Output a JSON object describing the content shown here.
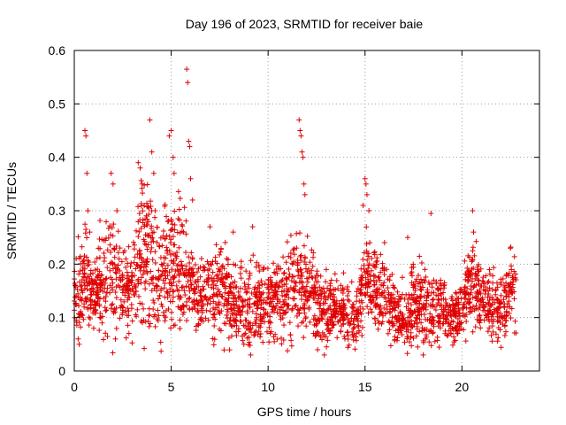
{
  "chart_data": {
    "type": "scatter",
    "title": "Day 196 of 2023, SRMTID for receiver baie",
    "xlabel": "GPS time / hours",
    "ylabel": "SRMTID / TECUs",
    "xlim": [
      0,
      24
    ],
    "ylim": [
      0,
      0.6
    ],
    "xticks": [
      0,
      5,
      10,
      15,
      20
    ],
    "xtick_labels": [
      "0",
      "5",
      "10",
      "15",
      "20"
    ],
    "yticks": [
      0,
      0.1,
      0.2,
      0.3,
      0.4,
      0.5,
      0.6
    ],
    "ytick_labels": [
      "0",
      "0.1",
      "0.2",
      "0.3",
      "0.4",
      "0.5",
      "0.6"
    ],
    "grid": true,
    "marker": "+",
    "color": "#e00000",
    "series": [
      {
        "name": "SRMTID",
        "trend": [
          [
            0.0,
            0.15,
            0.04
          ],
          [
            0.5,
            0.17,
            0.05
          ],
          [
            1.0,
            0.14,
            0.04
          ],
          [
            1.5,
            0.17,
            0.05
          ],
          [
            2.0,
            0.19,
            0.06
          ],
          [
            2.5,
            0.15,
            0.04
          ],
          [
            3.0,
            0.16,
            0.05
          ],
          [
            3.5,
            0.22,
            0.07
          ],
          [
            4.0,
            0.2,
            0.07
          ],
          [
            4.5,
            0.18,
            0.06
          ],
          [
            5.0,
            0.2,
            0.07
          ],
          [
            5.5,
            0.19,
            0.06
          ],
          [
            6.0,
            0.17,
            0.05
          ],
          [
            6.5,
            0.14,
            0.04
          ],
          [
            7.0,
            0.14,
            0.04
          ],
          [
            7.5,
            0.16,
            0.05
          ],
          [
            8.0,
            0.13,
            0.04
          ],
          [
            8.5,
            0.12,
            0.04
          ],
          [
            9.0,
            0.11,
            0.04
          ],
          [
            9.5,
            0.12,
            0.04
          ],
          [
            10.0,
            0.13,
            0.04
          ],
          [
            10.5,
            0.14,
            0.04
          ],
          [
            11.0,
            0.14,
            0.05
          ],
          [
            11.5,
            0.17,
            0.05
          ],
          [
            12.0,
            0.16,
            0.05
          ],
          [
            12.5,
            0.13,
            0.04
          ],
          [
            13.0,
            0.11,
            0.03
          ],
          [
            13.5,
            0.12,
            0.03
          ],
          [
            14.0,
            0.1,
            0.03
          ],
          [
            14.5,
            0.09,
            0.03
          ],
          [
            15.0,
            0.18,
            0.05
          ],
          [
            15.5,
            0.16,
            0.05
          ],
          [
            16.0,
            0.14,
            0.04
          ],
          [
            16.5,
            0.11,
            0.03
          ],
          [
            17.0,
            0.09,
            0.03
          ],
          [
            17.5,
            0.12,
            0.04
          ],
          [
            18.0,
            0.13,
            0.04
          ],
          [
            18.5,
            0.11,
            0.04
          ],
          [
            19.0,
            0.12,
            0.04
          ],
          [
            19.5,
            0.1,
            0.03
          ],
          [
            20.0,
            0.11,
            0.03
          ],
          [
            20.5,
            0.18,
            0.05
          ],
          [
            21.0,
            0.13,
            0.04
          ],
          [
            21.5,
            0.12,
            0.04
          ],
          [
            22.0,
            0.11,
            0.04
          ],
          [
            22.5,
            0.15,
            0.04
          ],
          [
            22.8,
            0.16,
            0.04
          ]
        ],
        "outliers": [
          [
            0.2,
            0.06
          ],
          [
            0.25,
            0.05
          ],
          [
            0.55,
            0.45
          ],
          [
            0.6,
            0.44
          ],
          [
            0.65,
            0.37
          ],
          [
            0.7,
            0.3
          ],
          [
            0.8,
            0.26
          ],
          [
            1.9,
            0.37
          ],
          [
            2.0,
            0.35
          ],
          [
            2.2,
            0.3
          ],
          [
            3.3,
            0.39
          ],
          [
            3.4,
            0.38
          ],
          [
            3.5,
            0.35
          ],
          [
            3.9,
            0.47
          ],
          [
            4.0,
            0.41
          ],
          [
            4.1,
            0.37
          ],
          [
            4.9,
            0.44
          ],
          [
            5.0,
            0.45
          ],
          [
            5.1,
            0.4
          ],
          [
            5.15,
            0.37
          ],
          [
            5.8,
            0.565
          ],
          [
            5.85,
            0.54
          ],
          [
            5.9,
            0.43
          ],
          [
            5.95,
            0.42
          ],
          [
            6.0,
            0.36
          ],
          [
            6.1,
            0.32
          ],
          [
            11.6,
            0.47
          ],
          [
            11.65,
            0.45
          ],
          [
            11.7,
            0.44
          ],
          [
            11.75,
            0.41
          ],
          [
            11.8,
            0.4
          ],
          [
            11.85,
            0.35
          ],
          [
            11.9,
            0.33
          ],
          [
            15.0,
            0.36
          ],
          [
            15.05,
            0.35
          ],
          [
            15.1,
            0.33
          ],
          [
            14.9,
            0.31
          ],
          [
            15.2,
            0.3
          ],
          [
            18.4,
            0.295
          ],
          [
            20.55,
            0.3
          ],
          [
            20.6,
            0.26
          ],
          [
            22.5,
            0.23
          ],
          [
            9.2,
            0.27
          ],
          [
            7.0,
            0.27
          ],
          [
            8.2,
            0.26
          ],
          [
            18.0,
            0.03
          ],
          [
            12.9,
            0.03
          ],
          [
            9.1,
            0.03
          ],
          [
            13.0,
            0.19
          ],
          [
            17.2,
            0.25
          ]
        ]
      }
    ]
  }
}
